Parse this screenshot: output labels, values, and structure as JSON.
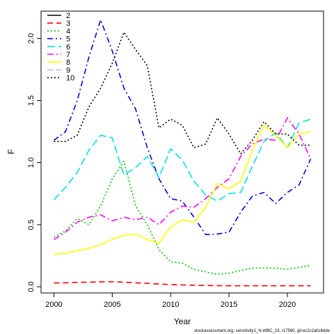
{
  "chart_data": {
    "type": "line",
    "title": "",
    "xlabel": "Year",
    "ylabel": "F",
    "xlim": [
      1998.9,
      2023.1
    ],
    "ylim": [
      -0.05,
      2.22
    ],
    "x_ticks": [
      2000,
      2005,
      2010,
      2015,
      2020
    ],
    "y_ticks": [
      "0.0",
      "0.5",
      "1.0",
      "1.5",
      "2.0"
    ],
    "grid": false,
    "legend_position": "top-left",
    "caption": "stockassessment.org, sensitivity1_N-WBC_23, r17590, git:ec2c2a0c6dde",
    "x": [
      2000,
      2001,
      2002,
      2003,
      2004,
      2005,
      2006,
      2007,
      2008,
      2009,
      2010,
      2011,
      2012,
      2013,
      2014,
      2015,
      2016,
      2017,
      2018,
      2019,
      2020,
      2021,
      2022
    ],
    "series": [
      {
        "name": "2",
        "color": "#000000",
        "dash": "solid",
        "values": [
          null,
          null,
          null,
          null,
          null,
          null,
          null,
          null,
          null,
          null,
          null,
          null,
          null,
          null,
          null,
          null,
          null,
          null,
          null,
          null,
          null,
          null,
          null
        ]
      },
      {
        "name": "3",
        "color": "#ff0000",
        "dash": "8,5",
        "values": [
          0.03,
          0.032,
          0.035,
          0.037,
          0.039,
          0.04,
          0.037,
          0.032,
          0.027,
          0.022,
          0.018,
          0.014,
          0.012,
          0.01,
          0.009,
          0.008,
          0.008,
          0.008,
          0.008,
          0.008,
          0.008,
          0.008,
          0.008
        ]
      },
      {
        "name": "4",
        "color": "#00c000",
        "dash": "2,3",
        "values": [
          0.4,
          0.45,
          0.55,
          0.5,
          0.65,
          0.87,
          1.01,
          0.65,
          0.5,
          0.3,
          0.2,
          0.19,
          0.14,
          0.12,
          0.1,
          0.11,
          0.13,
          0.15,
          0.15,
          0.15,
          0.14,
          0.155,
          0.17
        ]
      },
      {
        "name": "5",
        "color": "#0000e0",
        "dash": "8,4,2,4",
        "values": [
          1.18,
          1.25,
          1.5,
          1.85,
          2.15,
          1.9,
          1.6,
          1.43,
          1.12,
          0.87,
          0.71,
          0.69,
          0.56,
          0.42,
          0.425,
          0.44,
          0.6,
          0.73,
          0.76,
          0.67,
          0.76,
          0.82,
          1.03
        ]
      },
      {
        "name": "6",
        "color": "#00e0e0",
        "dash": "11,5",
        "values": [
          0.7,
          0.8,
          0.92,
          1.1,
          1.22,
          1.2,
          0.9,
          0.96,
          1.05,
          0.88,
          1.11,
          1.02,
          0.85,
          0.74,
          0.69,
          0.75,
          0.76,
          0.97,
          1.17,
          1.24,
          1.12,
          1.32,
          1.35
        ]
      },
      {
        "name": "7",
        "color": "#ff00ff",
        "dash": "9,4,2,4",
        "values": [
          0.38,
          0.44,
          0.52,
          0.56,
          0.58,
          0.53,
          0.56,
          0.54,
          0.56,
          0.5,
          0.6,
          0.65,
          0.64,
          0.71,
          0.8,
          0.87,
          1.05,
          1.15,
          1.19,
          1.18,
          1.36,
          1.23,
          1.03
        ]
      },
      {
        "name": "8",
        "color": "#ffff00",
        "dash": "solid",
        "values": [
          0.26,
          0.27,
          0.29,
          0.31,
          0.34,
          0.38,
          0.415,
          0.425,
          0.38,
          0.35,
          0.48,
          0.54,
          0.52,
          0.64,
          0.83,
          0.79,
          0.85,
          1.1,
          1.3,
          1.22,
          1.12,
          1.23,
          1.25
        ]
      },
      {
        "name": "9",
        "color": "#bebebe",
        "dash": "8,5",
        "values": [
          null,
          null,
          null,
          null,
          null,
          null,
          null,
          null,
          null,
          null,
          null,
          null,
          null,
          null,
          null,
          null,
          null,
          null,
          null,
          null,
          null,
          null,
          null
        ]
      },
      {
        "name": "10",
        "color": "#000000",
        "dash": "2,3",
        "values": [
          1.17,
          1.17,
          1.22,
          1.45,
          1.6,
          1.8,
          2.05,
          1.91,
          1.78,
          1.28,
          1.35,
          1.3,
          1.12,
          1.15,
          1.36,
          1.23,
          1.07,
          1.18,
          1.33,
          1.23,
          1.23,
          1.14,
          1.14
        ]
      }
    ]
  }
}
